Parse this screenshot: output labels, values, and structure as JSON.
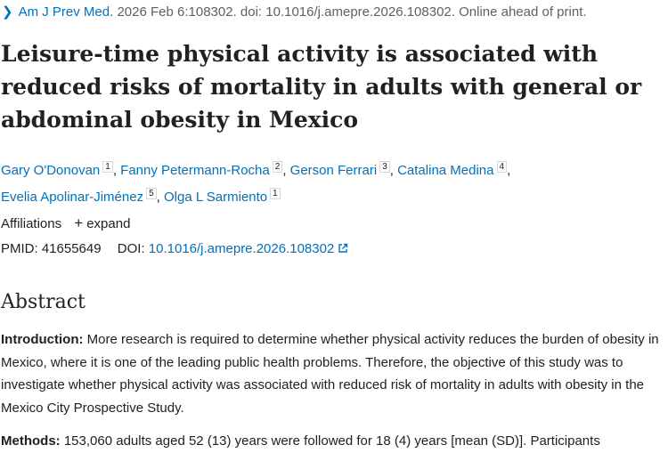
{
  "citation": {
    "journal": "Am J Prev Med.",
    "details": "2026 Feb 6:108302. doi: 10.1016/j.amepre.2026.108302. Online ahead of print."
  },
  "title": "Leisure-time physical activity is associated with reduced risks of mortality in adults with general or abdominal obesity in Mexico",
  "authors": [
    {
      "name": "Gary O'Donovan",
      "aff": "1"
    },
    {
      "name": "Fanny Petermann-Rocha",
      "aff": "2"
    },
    {
      "name": "Gerson Ferrari",
      "aff": "3"
    },
    {
      "name": "Catalina Medina",
      "aff": "4"
    },
    {
      "name": "Evelia Apolinar-Jiménez",
      "aff": "5"
    },
    {
      "name": "Olga L Sarmiento",
      "aff": "1"
    }
  ],
  "affiliations": {
    "label": "Affiliations",
    "expand": "expand"
  },
  "ids": {
    "pmid_label": "PMID:",
    "pmid": "41655649",
    "doi_label": "DOI:",
    "doi": "10.1016/j.amepre.2026.108302"
  },
  "abstract": {
    "heading": "Abstract",
    "intro_label": "Introduction:",
    "intro_text": "More research is required to determine whether physical activity reduces the burden of obesity in Mexico, where it is one of the leading public health problems. Therefore, the objective of this study was to investigate whether physical activity was associated with reduced risk of mortality in adults with obesity in the Mexico City Prospective Study.",
    "methods_label": "Methods:",
    "methods_text": "153,060 adults aged 52 (13) years were followed for 18 (4) years [mean (SD)]. Participants"
  },
  "colors": {
    "link": "#0071bc",
    "text": "#212121",
    "muted": "#5b616b"
  }
}
